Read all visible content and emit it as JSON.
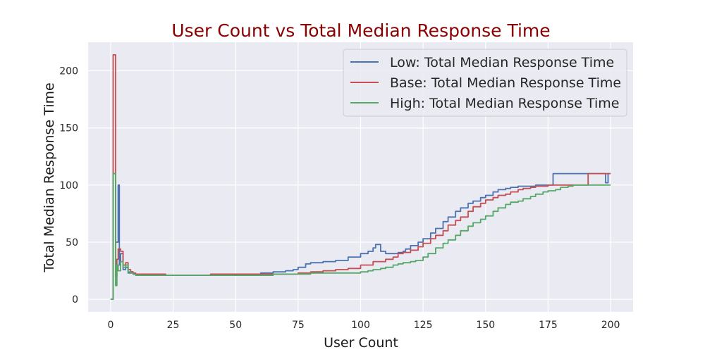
{
  "chart_data": {
    "type": "line",
    "title": "User Count vs Total Median Response Time",
    "xlabel": "User Count",
    "ylabel": "Total Median Response Time",
    "xlim": [
      -9,
      209
    ],
    "ylim": [
      -11,
      225
    ],
    "xticks": [
      0,
      25,
      50,
      75,
      100,
      125,
      150,
      175,
      200
    ],
    "yticks": [
      0,
      50,
      100,
      150,
      200
    ],
    "grid": true,
    "legend_position": "top-right",
    "colors": {
      "background": "#eaeaf2",
      "grid": "#ffffff",
      "title": "#8b0000"
    },
    "series": [
      {
        "name": "Low: Total Median Response Time",
        "color": "#4c72b0",
        "points": [
          [
            0,
            0
          ],
          [
            1,
            110
          ],
          [
            2,
            50
          ],
          [
            3,
            100
          ],
          [
            3.5,
            30
          ],
          [
            4,
            40
          ],
          [
            5,
            26
          ],
          [
            6,
            28
          ],
          [
            7,
            23
          ],
          [
            8,
            24
          ],
          [
            9,
            22
          ],
          [
            10,
            22
          ],
          [
            20,
            21
          ],
          [
            30,
            21
          ],
          [
            40,
            21
          ],
          [
            50,
            22
          ],
          [
            60,
            23
          ],
          [
            65,
            24
          ],
          [
            70,
            25
          ],
          [
            73,
            26
          ],
          [
            75,
            28
          ],
          [
            78,
            31
          ],
          [
            80,
            32
          ],
          [
            85,
            33
          ],
          [
            90,
            34
          ],
          [
            95,
            37
          ],
          [
            100,
            40
          ],
          [
            103,
            42
          ],
          [
            105,
            45
          ],
          [
            106,
            48
          ],
          [
            107,
            48
          ],
          [
            108,
            42
          ],
          [
            110,
            40
          ],
          [
            113,
            40
          ],
          [
            115,
            41
          ],
          [
            117,
            42
          ],
          [
            118,
            44
          ],
          [
            120,
            47
          ],
          [
            123,
            50
          ],
          [
            125,
            53
          ],
          [
            128,
            58
          ],
          [
            130,
            62
          ],
          [
            133,
            68
          ],
          [
            135,
            72
          ],
          [
            138,
            77
          ],
          [
            140,
            80
          ],
          [
            143,
            84
          ],
          [
            145,
            86
          ],
          [
            148,
            89
          ],
          [
            150,
            91
          ],
          [
            153,
            94
          ],
          [
            155,
            96
          ],
          [
            158,
            97
          ],
          [
            160,
            98
          ],
          [
            163,
            99
          ],
          [
            165,
            99
          ],
          [
            170,
            100
          ],
          [
            175,
            100
          ],
          [
            177,
            100
          ],
          [
            177,
            110
          ],
          [
            190,
            110
          ],
          [
            198,
            110
          ],
          [
            198,
            102
          ],
          [
            199,
            110
          ],
          [
            200,
            110
          ]
        ]
      },
      {
        "name": "Base: Total Median Response Time",
        "color": "#c44e52",
        "points": [
          [
            0,
            0
          ],
          [
            1,
            214
          ],
          [
            2,
            20
          ],
          [
            2.5,
            35
          ],
          [
            3,
            44
          ],
          [
            4,
            42
          ],
          [
            5,
            30
          ],
          [
            6,
            32
          ],
          [
            7,
            26
          ],
          [
            8,
            24
          ],
          [
            9,
            23
          ],
          [
            10,
            22
          ],
          [
            20,
            22
          ],
          [
            22,
            21
          ],
          [
            30,
            21
          ],
          [
            40,
            22
          ],
          [
            50,
            22
          ],
          [
            60,
            22
          ],
          [
            70,
            22
          ],
          [
            75,
            23
          ],
          [
            80,
            24
          ],
          [
            85,
            25
          ],
          [
            90,
            26
          ],
          [
            95,
            27
          ],
          [
            100,
            30
          ],
          [
            105,
            33
          ],
          [
            110,
            35
          ],
          [
            113,
            37
          ],
          [
            115,
            40
          ],
          [
            117,
            41
          ],
          [
            120,
            43
          ],
          [
            123,
            46
          ],
          [
            125,
            49
          ],
          [
            128,
            53
          ],
          [
            130,
            56
          ],
          [
            133,
            60
          ],
          [
            135,
            65
          ],
          [
            138,
            69
          ],
          [
            140,
            72
          ],
          [
            143,
            77
          ],
          [
            145,
            81
          ],
          [
            148,
            84
          ],
          [
            150,
            87
          ],
          [
            153,
            89
          ],
          [
            155,
            91
          ],
          [
            158,
            92
          ],
          [
            160,
            94
          ],
          [
            163,
            96
          ],
          [
            165,
            97
          ],
          [
            168,
            98
          ],
          [
            170,
            99
          ],
          [
            175,
            100
          ],
          [
            180,
            100
          ],
          [
            185,
            100
          ],
          [
            190,
            100
          ],
          [
            191,
            110
          ],
          [
            200,
            110
          ]
        ]
      },
      {
        "name": "High: Total Median Response Time",
        "color": "#55a868",
        "points": [
          [
            0,
            0
          ],
          [
            1,
            110
          ],
          [
            2,
            12
          ],
          [
            2.5,
            30
          ],
          [
            3,
            25
          ],
          [
            4,
            33
          ],
          [
            5,
            28
          ],
          [
            6,
            30
          ],
          [
            7,
            24
          ],
          [
            8,
            23
          ],
          [
            9,
            22
          ],
          [
            10,
            21
          ],
          [
            20,
            21
          ],
          [
            30,
            21
          ],
          [
            40,
            21
          ],
          [
            50,
            21
          ],
          [
            60,
            21
          ],
          [
            65,
            22
          ],
          [
            75,
            22
          ],
          [
            80,
            23
          ],
          [
            85,
            23
          ],
          [
            90,
            23
          ],
          [
            95,
            23
          ],
          [
            100,
            24
          ],
          [
            103,
            25
          ],
          [
            105,
            26
          ],
          [
            108,
            27
          ],
          [
            110,
            28
          ],
          [
            113,
            30
          ],
          [
            115,
            31
          ],
          [
            117,
            32
          ],
          [
            120,
            33
          ],
          [
            122,
            34
          ],
          [
            125,
            37
          ],
          [
            127,
            40
          ],
          [
            130,
            45
          ],
          [
            133,
            49
          ],
          [
            135,
            52
          ],
          [
            138,
            56
          ],
          [
            140,
            60
          ],
          [
            143,
            64
          ],
          [
            145,
            67
          ],
          [
            148,
            70
          ],
          [
            150,
            73
          ],
          [
            153,
            77
          ],
          [
            155,
            80
          ],
          [
            158,
            83
          ],
          [
            160,
            85
          ],
          [
            163,
            86
          ],
          [
            165,
            88
          ],
          [
            168,
            90
          ],
          [
            170,
            92
          ],
          [
            173,
            94
          ],
          [
            175,
            95
          ],
          [
            178,
            96
          ],
          [
            180,
            98
          ],
          [
            183,
            99
          ],
          [
            185,
            100
          ],
          [
            190,
            100
          ],
          [
            200,
            100
          ]
        ]
      }
    ]
  }
}
